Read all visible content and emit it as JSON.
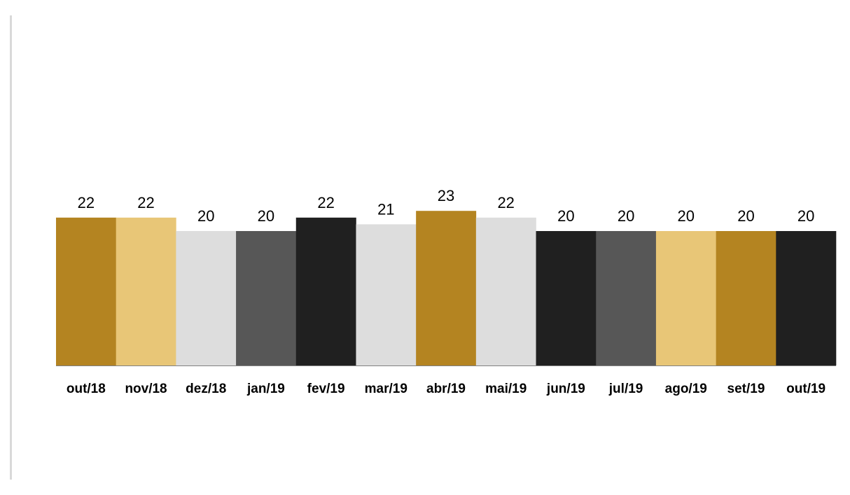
{
  "chart_data": {
    "type": "bar",
    "title": "",
    "xlabel": "",
    "ylabel": "",
    "categories": [
      "out/18",
      "nov/18",
      "dez/18",
      "jan/19",
      "fev/19",
      "mar/19",
      "abr/19",
      "mai/19",
      "jun/19",
      "jul/19",
      "ago/19",
      "set/19",
      "out/19"
    ],
    "values": [
      22,
      22,
      20,
      20,
      22,
      21,
      23,
      22,
      20,
      20,
      20,
      20,
      20
    ],
    "bar_colors": [
      "#b48421",
      "#e8c677",
      "#dddddd",
      "#575757",
      "#202020",
      "#dddddd",
      "#b48421",
      "#dddddd",
      "#202020",
      "#575757",
      "#e8c677",
      "#b48421",
      "#202020"
    ],
    "ylim": [
      0,
      50
    ],
    "grid": false,
    "legend": "none",
    "data_labels": true
  }
}
